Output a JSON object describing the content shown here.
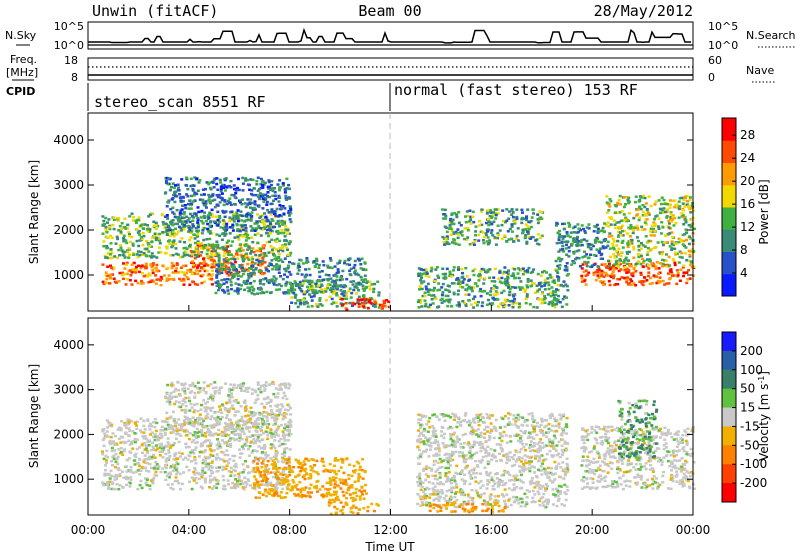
{
  "header": {
    "title": "Unwin (fitACF)",
    "beam": "Beam 00",
    "date": "28/May/2012"
  },
  "strip_panels": {
    "nsky_label": "N.Sky",
    "nsky_ticks": [
      "10^5",
      "10^0"
    ],
    "nsearch_label": "N.Search",
    "nsearch_ticks": [
      "10^5",
      "10^0"
    ],
    "freq_label": "Freq.",
    "freq_unit": "[MHz]",
    "freq_ticks": [
      "18",
      "8"
    ],
    "nave_label": "Nave",
    "nave_ticks": [
      "60",
      "0"
    ],
    "cpid_label": "CPID",
    "cpid_segments": [
      {
        "name": "stereo_scan 8551 RF",
        "start_hour": 0,
        "end_hour": 12
      },
      {
        "name": "normal (fast stereo) 153 RF",
        "start_hour": 12,
        "end_hour": 24
      }
    ]
  },
  "chart_data": [
    {
      "type": "heatmap",
      "name": "power-panel",
      "xlabel": "Time UT",
      "ylabel": "Slant Range [km]",
      "xlim": [
        0,
        24
      ],
      "ylim": [
        200,
        4600
      ],
      "x_ticks": [
        "00:00",
        "04:00",
        "08:00",
        "12:00",
        "16:00",
        "20:00",
        "00:00"
      ],
      "y_ticks": [
        1000,
        2000,
        3000,
        4000
      ],
      "colorbar": {
        "label": "Power [dB]",
        "ticks": [
          4,
          8,
          12,
          16,
          20,
          24,
          28
        ],
        "range": [
          0,
          31
        ],
        "colors": [
          "#0a1aff",
          "#2850c8",
          "#3a8a78",
          "#40b040",
          "#f0d800",
          "#ff9a00",
          "#ff4a00",
          "#ff0000"
        ]
      },
      "regions": [
        {
          "t_start": 0.5,
          "t_end": 5.0,
          "range_start": 800,
          "range_end": 1300,
          "level_db": 24
        },
        {
          "t_start": 4.0,
          "t_end": 7.0,
          "range_start": 1000,
          "range_end": 1700,
          "level_db": 24
        },
        {
          "t_start": 0.5,
          "t_end": 8.0,
          "range_start": 1400,
          "range_end": 2400,
          "level_db": 14
        },
        {
          "t_start": 3.0,
          "t_end": 8.0,
          "range_start": 2000,
          "range_end": 3200,
          "level_db": 8
        },
        {
          "t_start": 5.0,
          "t_end": 11.0,
          "range_start": 600,
          "range_end": 1400,
          "level_db": 10
        },
        {
          "t_start": 8.0,
          "t_end": 11.5,
          "range_start": 300,
          "range_end": 900,
          "level_db": 12
        },
        {
          "t_start": 10.0,
          "t_end": 12.0,
          "range_start": 250,
          "range_end": 500,
          "level_db": 28
        },
        {
          "t_start": 13.0,
          "t_end": 19.0,
          "range_start": 300,
          "range_end": 1200,
          "level_db": 12
        },
        {
          "t_start": 14.0,
          "t_end": 18.0,
          "range_start": 1700,
          "range_end": 2500,
          "level_db": 12
        },
        {
          "t_start": 19.5,
          "t_end": 24.0,
          "range_start": 800,
          "range_end": 1300,
          "level_db": 26
        },
        {
          "t_start": 20.5,
          "t_end": 24.0,
          "range_start": 1200,
          "range_end": 2800,
          "level_db": 16
        },
        {
          "t_start": 18.5,
          "t_end": 20.5,
          "range_start": 1200,
          "range_end": 2200,
          "level_db": 10
        }
      ]
    },
    {
      "type": "heatmap",
      "name": "velocity-panel",
      "xlabel": "Time UT",
      "ylabel": "Slant Range [km]",
      "xlim": [
        0,
        24
      ],
      "ylim": [
        200,
        4600
      ],
      "x_ticks": [
        "00:00",
        "04:00",
        "08:00",
        "12:00",
        "16:00",
        "20:00",
        "00:00"
      ],
      "y_ticks": [
        1000,
        2000,
        3000,
        4000
      ],
      "colorbar": {
        "label": "Velocity [m s^-1]",
        "ticks": [
          200,
          100,
          50,
          15,
          -15,
          -50,
          -100,
          -200
        ],
        "colors": [
          "#1a1aff",
          "#2860a8",
          "#38806a",
          "#60c040",
          "#c8c8c8",
          "#f0b000",
          "#ff8000",
          "#ff4000",
          "#ff0000"
        ]
      },
      "regions": [
        {
          "t_start": 0.5,
          "t_end": 8.0,
          "range_start": 800,
          "range_end": 2400,
          "velocity": 0
        },
        {
          "t_start": 3.0,
          "t_end": 8.0,
          "range_start": 2000,
          "range_end": 3200,
          "velocity": 0
        },
        {
          "t_start": 6.5,
          "t_end": 11.0,
          "range_start": 600,
          "range_end": 1500,
          "velocity": -40
        },
        {
          "t_start": 9.5,
          "t_end": 11.5,
          "range_start": 250,
          "range_end": 600,
          "velocity": -40
        },
        {
          "t_start": 13.0,
          "t_end": 19.0,
          "range_start": 400,
          "range_end": 2500,
          "velocity": 0
        },
        {
          "t_start": 13.5,
          "t_end": 16.5,
          "range_start": 280,
          "range_end": 500,
          "velocity": -50
        },
        {
          "t_start": 19.5,
          "t_end": 24.0,
          "range_start": 800,
          "range_end": 2200,
          "velocity": 0
        },
        {
          "t_start": 21.0,
          "t_end": 22.5,
          "range_start": 1500,
          "range_end": 2800,
          "velocity": 30
        }
      ]
    }
  ]
}
